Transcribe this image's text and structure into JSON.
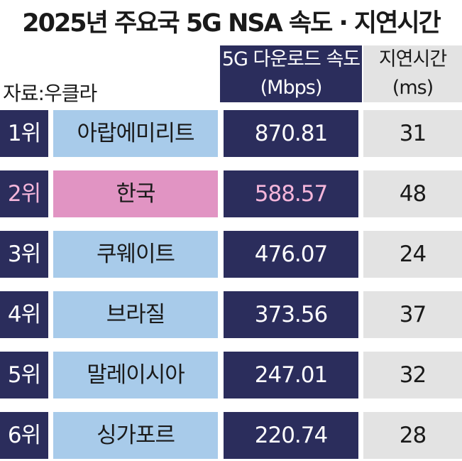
{
  "header": {
    "title": "2025년 주요국 5G NSA 속도 · 지연시간",
    "source": "자료:우클라"
  },
  "table": {
    "columns": [
      [
        "5G 다운로드 속도",
        "(Mbps)"
      ],
      [
        "지연시간",
        "(ms)"
      ]
    ],
    "rows": [
      [
        "1위",
        "아랍에미리트",
        870.81,
        31
      ],
      [
        "2위",
        "한국",
        588.57,
        48
      ],
      [
        "3위",
        "쿠웨이트",
        476.07,
        24
      ],
      [
        "4위",
        "브라질",
        373.56,
        37
      ],
      [
        "5위",
        "말레이시아",
        247.01,
        32
      ],
      [
        "6위",
        "싱가포르",
        220.74,
        28
      ]
    ]
  }
}
